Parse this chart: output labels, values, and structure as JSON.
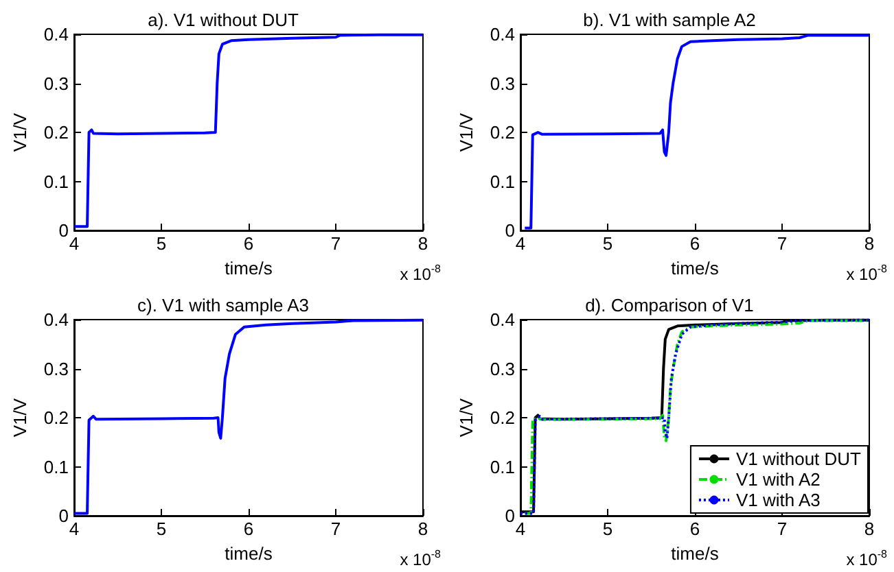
{
  "chart_data": [
    {
      "type": "line",
      "title": "a). V1 without DUT",
      "xlabel": "time/s",
      "ylabel": "V1/V",
      "annotations": [
        "x 10$^{-8}$"
      ],
      "xlim": [
        4,
        8
      ],
      "ylim": [
        0,
        0.4
      ],
      "xticks": [
        4,
        5,
        6,
        7,
        8
      ],
      "yticks": [
        0,
        0.1,
        0.2,
        0.3,
        0.4
      ],
      "series": [
        {
          "color": "#0000ff",
          "x": [
            4.0,
            4.15,
            4.17,
            4.2,
            4.22,
            4.5,
            5.0,
            5.5,
            5.62,
            5.64,
            5.66,
            5.7,
            5.8,
            6.0,
            6.5,
            7.0,
            7.05,
            7.5,
            8.0
          ],
          "values": [
            0.008,
            0.008,
            0.2,
            0.205,
            0.198,
            0.197,
            0.198,
            0.199,
            0.2,
            0.3,
            0.36,
            0.38,
            0.387,
            0.389,
            0.392,
            0.394,
            0.398,
            0.399,
            0.399
          ]
        }
      ]
    },
    {
      "type": "line",
      "title": "b). V1 with sample A2",
      "xlabel": "time/s",
      "ylabel": "V1/V",
      "annotations": [
        "x 10$^{-8}$"
      ],
      "xlim": [
        4,
        8
      ],
      "ylim": [
        0,
        0.4
      ],
      "xticks": [
        4,
        5,
        6,
        7,
        8
      ],
      "yticks": [
        0,
        0.1,
        0.2,
        0.3,
        0.4
      ],
      "series": [
        {
          "color": "#0000ff",
          "x": [
            4.05,
            4.12,
            4.14,
            4.2,
            4.25,
            5.0,
            5.6,
            5.63,
            5.65,
            5.67,
            5.7,
            5.72,
            5.75,
            5.8,
            5.85,
            5.95,
            6.2,
            6.5,
            7.0,
            7.2,
            7.3,
            8.0
          ],
          "values": [
            0.005,
            0.005,
            0.195,
            0.2,
            0.196,
            0.197,
            0.198,
            0.205,
            0.16,
            0.153,
            0.2,
            0.26,
            0.3,
            0.35,
            0.375,
            0.385,
            0.387,
            0.389,
            0.391,
            0.393,
            0.398,
            0.398
          ]
        }
      ]
    },
    {
      "type": "line",
      "title": "c). V1 with sample A3",
      "xlabel": "time/s",
      "ylabel": "V1/V",
      "annotations": [
        "x 10$^{-8}$"
      ],
      "xlim": [
        4,
        8
      ],
      "ylim": [
        0,
        0.4
      ],
      "xticks": [
        4,
        5,
        6,
        7,
        8
      ],
      "yticks": [
        0,
        0.1,
        0.2,
        0.3,
        0.4
      ],
      "series": [
        {
          "color": "#0000ff",
          "x": [
            4.0,
            4.15,
            4.17,
            4.22,
            4.25,
            5.0,
            5.6,
            5.65,
            5.66,
            5.68,
            5.7,
            5.73,
            5.78,
            5.85,
            5.95,
            6.2,
            6.5,
            7.0,
            7.2,
            8.0
          ],
          "values": [
            0.005,
            0.005,
            0.195,
            0.203,
            0.197,
            0.198,
            0.199,
            0.2,
            0.17,
            0.158,
            0.2,
            0.28,
            0.33,
            0.37,
            0.385,
            0.389,
            0.392,
            0.395,
            0.398,
            0.399
          ]
        }
      ]
    },
    {
      "type": "line",
      "title": "d). Comparison of V1",
      "xlabel": "time/s",
      "ylabel": "V1/V",
      "annotations": [
        "x 10$^{-8}$"
      ],
      "xlim": [
        4,
        8
      ],
      "ylim": [
        0,
        0.4
      ],
      "xticks": [
        4,
        5,
        6,
        7,
        8
      ],
      "yticks": [
        0,
        0.1,
        0.2,
        0.3,
        0.4
      ],
      "legend": "bottom right",
      "series": [
        {
          "name": "V1 without DUT",
          "color": "#000000",
          "line_style": "solid",
          "x": [
            4.0,
            4.15,
            4.17,
            4.2,
            4.22,
            4.5,
            5.0,
            5.5,
            5.62,
            5.64,
            5.66,
            5.7,
            5.8,
            6.0,
            6.5,
            7.0,
            7.05,
            7.5,
            8.0
          ],
          "values": [
            0.008,
            0.008,
            0.2,
            0.205,
            0.198,
            0.197,
            0.198,
            0.199,
            0.2,
            0.3,
            0.36,
            0.38,
            0.387,
            0.389,
            0.392,
            0.394,
            0.398,
            0.399,
            0.399
          ]
        },
        {
          "name": "V1 with A2",
          "color": "#00dd00",
          "line_style": "dashed",
          "x": [
            4.05,
            4.12,
            4.14,
            4.2,
            4.25,
            5.0,
            5.6,
            5.63,
            5.65,
            5.67,
            5.7,
            5.72,
            5.75,
            5.8,
            5.85,
            5.95,
            6.2,
            6.5,
            7.0,
            7.2,
            7.3,
            8.0
          ],
          "values": [
            0.005,
            0.005,
            0.195,
            0.2,
            0.196,
            0.197,
            0.198,
            0.205,
            0.16,
            0.153,
            0.2,
            0.26,
            0.3,
            0.35,
            0.375,
            0.385,
            0.387,
            0.389,
            0.391,
            0.393,
            0.398,
            0.398
          ]
        },
        {
          "name": "V1 with A3",
          "color": "#0000ff",
          "line_style": "dotted",
          "x": [
            4.0,
            4.15,
            4.17,
            4.22,
            4.25,
            5.0,
            5.6,
            5.65,
            5.66,
            5.68,
            5.7,
            5.73,
            5.78,
            5.85,
            5.95,
            6.2,
            6.5,
            7.0,
            7.2,
            8.0
          ],
          "values": [
            0.005,
            0.005,
            0.195,
            0.203,
            0.197,
            0.198,
            0.199,
            0.2,
            0.17,
            0.158,
            0.2,
            0.28,
            0.33,
            0.37,
            0.385,
            0.389,
            0.392,
            0.395,
            0.398,
            0.399
          ]
        }
      ]
    }
  ]
}
